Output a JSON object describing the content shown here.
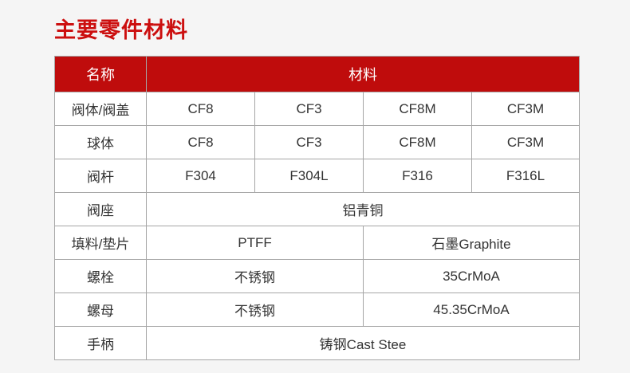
{
  "page": {
    "title": "主要零件材料"
  },
  "colors": {
    "accent_red": "#bf0c0c",
    "title_red": "#cc0f0f",
    "page_background": "#f5f5f5",
    "cell_background": "#ffffff",
    "border_gray": "#a6a6a6",
    "cell_text": "#333333",
    "header_text": "#ffffff"
  },
  "table": {
    "header": {
      "name_label": "名称",
      "material_label": "材料"
    },
    "material_columns": 4,
    "rows": [
      {
        "name": "阀体/阀盖",
        "cells": [
          {
            "text": "CF8",
            "span": 1
          },
          {
            "text": "CF3",
            "span": 1
          },
          {
            "text": "CF8M",
            "span": 1
          },
          {
            "text": "CF3M",
            "span": 1
          }
        ]
      },
      {
        "name": "球体",
        "cells": [
          {
            "text": "CF8",
            "span": 1
          },
          {
            "text": "CF3",
            "span": 1
          },
          {
            "text": "CF8M",
            "span": 1
          },
          {
            "text": "CF3M",
            "span": 1
          }
        ]
      },
      {
        "name": "阀杆",
        "cells": [
          {
            "text": "F304",
            "span": 1
          },
          {
            "text": "F304L",
            "span": 1
          },
          {
            "text": "F316",
            "span": 1
          },
          {
            "text": "F316L",
            "span": 1
          }
        ]
      },
      {
        "name": "阀座",
        "cells": [
          {
            "text": "铝青铜",
            "span": 4
          }
        ]
      },
      {
        "name": "填料/垫片",
        "cells": [
          {
            "text": "PTFF",
            "span": 2
          },
          {
            "text": "石墨Graphite",
            "span": 2
          }
        ]
      },
      {
        "name": "螺栓",
        "cells": [
          {
            "text": "不锈钢",
            "span": 2
          },
          {
            "text": "35CrMoA",
            "span": 2
          }
        ]
      },
      {
        "name": "螺母",
        "cells": [
          {
            "text": "不锈钢",
            "span": 2
          },
          {
            "text": "45.35CrMoA",
            "span": 2
          }
        ]
      },
      {
        "name": "手柄",
        "cells": [
          {
            "text": "铸钢Cast Stee",
            "span": 4
          }
        ]
      }
    ]
  }
}
